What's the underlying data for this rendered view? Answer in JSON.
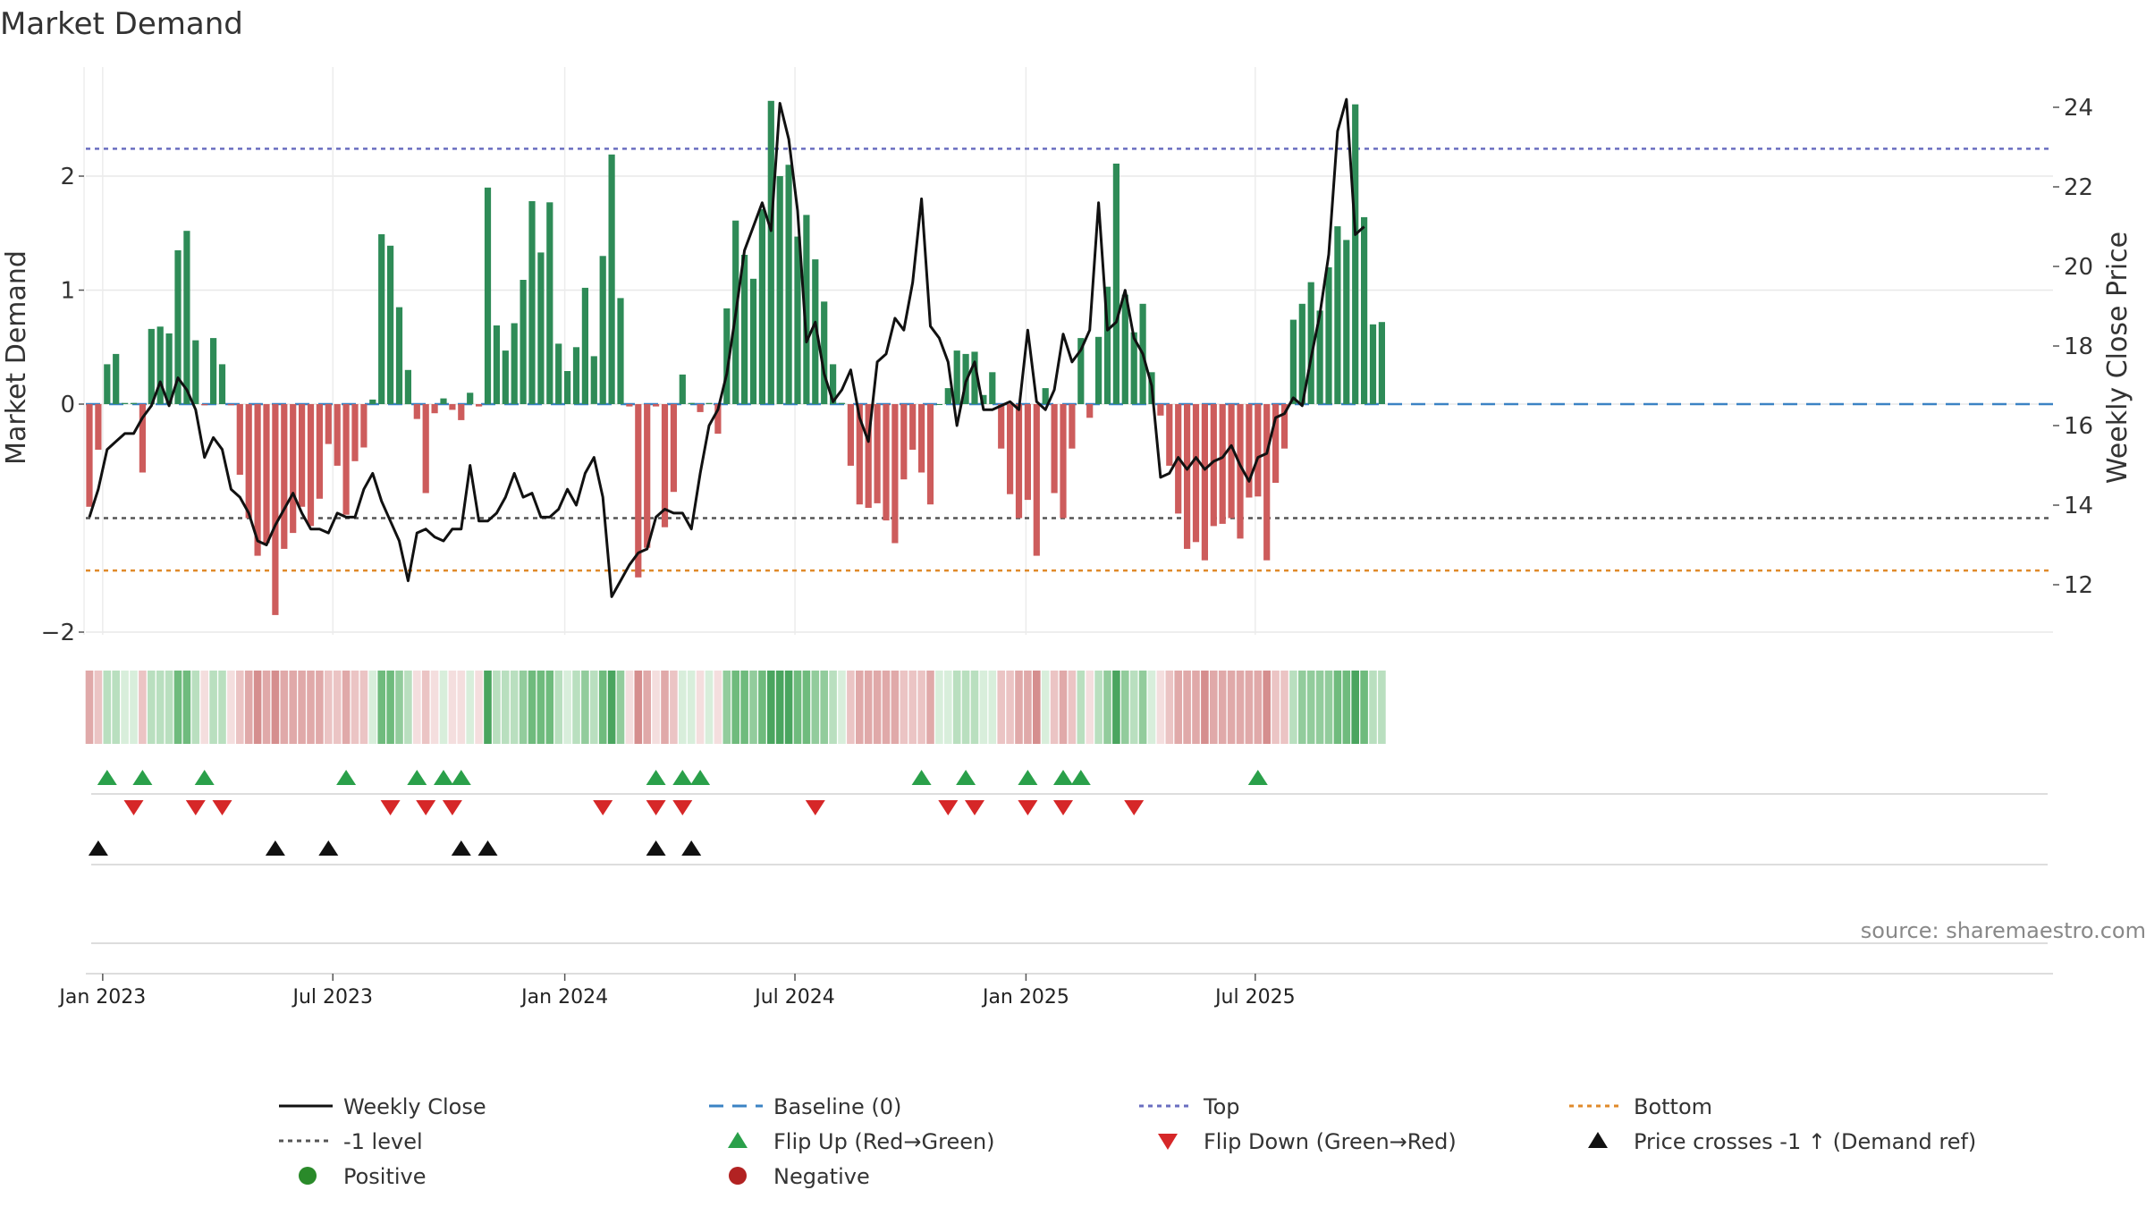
{
  "chart_data": {
    "type": "bar",
    "title": "Market Demand",
    "ylabel": "Market Demand",
    "y2label": "Weekly Close Price",
    "ylim": [
      -2.0,
      2.8
    ],
    "y2lim": [
      11.1,
      24.5
    ],
    "yticks": [
      "2",
      "1",
      "0",
      "−2"
    ],
    "ytick_values": [
      2,
      1,
      0,
      -2
    ],
    "y2ticks": [
      "24",
      "22",
      "20",
      "18",
      "16",
      "14",
      "12"
    ],
    "y2tick_values": [
      24,
      22,
      20,
      18,
      16,
      14,
      12
    ],
    "x_start": "2022-12-22",
    "x_end": "2025-09-25",
    "xticks": [
      {
        "label": "Jan 2023",
        "week": 1.5
      },
      {
        "label": "Jul 2023",
        "week": 27.5
      },
      {
        "label": "Jan 2024",
        "week": 53.7
      },
      {
        "label": "Jul 2024",
        "week": 79.7
      },
      {
        "label": "Jan 2025",
        "week": 105.8
      },
      {
        "label": "Jul 2025",
        "week": 131.7
      }
    ],
    "reference_lines": {
      "top": 2.24,
      "minus_one": -1,
      "bottom": -1.46,
      "baseline": 0
    },
    "demand": [
      -0.9,
      -0.4,
      0.35,
      0.44,
      0.01,
      0.01,
      -0.6,
      0.66,
      0.68,
      0.62,
      1.35,
      1.52,
      0.56,
      -0.01,
      0.58,
      0.35,
      -0.01,
      -0.62,
      -1.0,
      -1.33,
      -1.22,
      -1.85,
      -1.27,
      -1.13,
      -0.9,
      -1.07,
      -0.83,
      -0.35,
      -0.54,
      -0.97,
      -0.5,
      -0.38,
      0.04,
      1.49,
      1.39,
      0.85,
      0.3,
      -0.13,
      -0.78,
      -0.08,
      0.05,
      -0.05,
      -0.14,
      0.1,
      -0.02,
      1.9,
      0.69,
      0.47,
      0.71,
      1.09,
      1.78,
      1.33,
      1.77,
      0.53,
      0.29,
      0.5,
      1.02,
      0.42,
      1.3,
      2.19,
      0.93,
      -0.02,
      -1.52,
      -1.26,
      -0.02,
      -1.08,
      -0.77,
      0.26,
      0.01,
      -0.07,
      0.01,
      -0.26,
      0.84,
      1.61,
      1.31,
      1.1,
      1.71,
      2.66,
      2.0,
      2.1,
      1.47,
      1.66,
      1.27,
      0.9,
      0.35,
      0.01,
      -0.54,
      -0.88,
      -0.91,
      -0.87,
      -1.02,
      -1.22,
      -0.66,
      -0.4,
      -0.6,
      -0.88,
      0.0,
      0.14,
      0.47,
      0.44,
      0.46,
      0.08,
      0.28,
      -0.39,
      -0.79,
      -1.0,
      -0.84,
      -1.33,
      0.14,
      -0.78,
      -1.0,
      -0.39,
      0.58,
      -0.12,
      0.59,
      1.03,
      2.11,
      0.96,
      0.63,
      0.88,
      0.28,
      -0.1,
      -0.54,
      -0.96,
      -1.27,
      -1.21,
      -1.37,
      -1.07,
      -1.05,
      -1.0,
      -1.18,
      -0.82,
      -0.81,
      -1.37,
      -0.69,
      -0.39,
      0.74,
      0.88,
      1.07,
      0.82,
      1.2,
      1.56,
      1.44,
      2.63,
      1.64,
      0.7,
      0.72
    ],
    "close_price": [
      13.7,
      14.4,
      15.4,
      15.6,
      15.8,
      15.8,
      16.2,
      16.5,
      17.1,
      16.5,
      17.2,
      16.9,
      16.4,
      15.2,
      15.7,
      15.4,
      14.4,
      14.2,
      13.8,
      13.1,
      13.0,
      13.5,
      13.9,
      14.3,
      13.8,
      13.4,
      13.4,
      13.3,
      13.8,
      13.7,
      13.7,
      14.4,
      14.8,
      14.1,
      13.6,
      13.1,
      12.1,
      13.3,
      13.4,
      13.2,
      13.1,
      13.4,
      13.4,
      15.0,
      13.6,
      13.6,
      13.8,
      14.2,
      14.8,
      14.2,
      14.3,
      13.7,
      13.7,
      13.9,
      14.4,
      14.0,
      14.8,
      15.2,
      14.2,
      11.7,
      12.1,
      12.5,
      12.8,
      12.9,
      13.7,
      13.9,
      13.8,
      13.8,
      13.4,
      14.8,
      16.0,
      16.4,
      17.3,
      18.8,
      20.4,
      21.0,
      21.6,
      20.9,
      24.1,
      23.2,
      21.4,
      18.1,
      18.6,
      17.3,
      16.6,
      16.9,
      17.4,
      16.2,
      15.6,
      17.6,
      17.8,
      18.7,
      18.4,
      19.6,
      21.7,
      18.5,
      18.2,
      17.6,
      16.0,
      17.1,
      17.6,
      16.4,
      16.4,
      16.5,
      16.6,
      16.4,
      18.4,
      16.6,
      16.4,
      16.9,
      18.3,
      17.6,
      17.9,
      18.4,
      21.6,
      18.4,
      18.6,
      19.4,
      18.2,
      17.8,
      17.0,
      14.7,
      14.8,
      15.2,
      14.9,
      15.2,
      14.9,
      15.1,
      15.2,
      15.5,
      15.0,
      14.6,
      15.2,
      15.3,
      16.2,
      16.3,
      16.7,
      16.5,
      17.7,
      18.8,
      20.3,
      23.4,
      24.2,
      20.8,
      21.0
    ],
    "flip_up_weeks": [
      2,
      6,
      13,
      29,
      37,
      40,
      42,
      64,
      67,
      69,
      94,
      99,
      106,
      110,
      112,
      132
    ],
    "flip_down_weeks": [
      5,
      12,
      15,
      34,
      38,
      41,
      58,
      64,
      67,
      82,
      97,
      100,
      106,
      110,
      118
    ],
    "cross_weeks": [
      1,
      21,
      27,
      42,
      45,
      64,
      68
    ],
    "legend": [
      {
        "label": "Weekly Close",
        "style": "line",
        "color": "#111111"
      },
      {
        "label": "Baseline (0)",
        "style": "dashed",
        "color": "#3b83c4"
      },
      {
        "label": "Top",
        "style": "dotted",
        "color": "#6a6ec0"
      },
      {
        "label": "Bottom",
        "style": "dotted",
        "color": "#e08a2a"
      },
      {
        "label": "-1 level",
        "style": "dotted",
        "color": "#555555"
      },
      {
        "label": "Flip Up (Red→Green)",
        "style": "tri-up",
        "color": "#2aa04a"
      },
      {
        "label": "Flip Down (Green→Red)",
        "style": "tri-down",
        "color": "#d62728"
      },
      {
        "label": "Price crosses -1 ↑ (Demand ref)",
        "style": "tri-up",
        "color": "#111111"
      },
      {
        "label": "Positive",
        "style": "dot",
        "color": "#2a8a2a"
      },
      {
        "label": "Negative",
        "style": "dot",
        "color": "#b22222"
      }
    ],
    "source": "source: sharemaestro.com"
  },
  "colors": {
    "positive_bar": "#2e8b57",
    "negative_bar": "#cd5c5c",
    "price_line": "#111111"
  }
}
